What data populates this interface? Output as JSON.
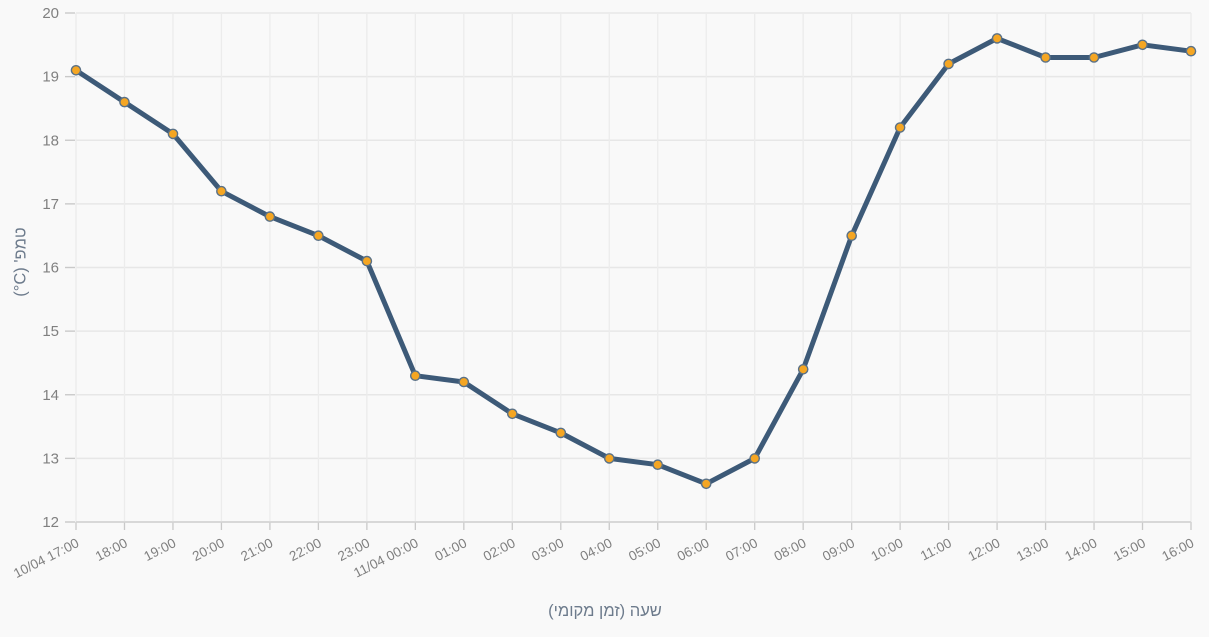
{
  "chart_data": {
    "type": "line",
    "title": "",
    "xlabel": "שעה (זמן מקומי)",
    "ylabel": "טמפ' (C°)",
    "categories": [
      "10/04 17:00",
      "18:00",
      "19:00",
      "20:00",
      "21:00",
      "22:00",
      "23:00",
      "11/04 00:00",
      "01:00",
      "02:00",
      "03:00",
      "04:00",
      "05:00",
      "06:00",
      "07:00",
      "08:00",
      "09:00",
      "10:00",
      "11:00",
      "12:00",
      "13:00",
      "14:00",
      "15:00",
      "16:00"
    ],
    "values": [
      19.1,
      18.6,
      18.1,
      17.2,
      16.8,
      16.5,
      16.1,
      14.3,
      14.2,
      13.7,
      13.4,
      13.0,
      12.9,
      12.6,
      13.0,
      14.4,
      16.5,
      18.2,
      19.2,
      19.6,
      19.3,
      19.3,
      19.5,
      19.4
    ],
    "ylim": [
      12,
      20
    ],
    "y_ticks": [
      12,
      13,
      14,
      15,
      16,
      17,
      18,
      19,
      20
    ],
    "grid": "on",
    "legend": "none",
    "colors": {
      "line": "#3d5a78",
      "marker_fill": "#f5a623",
      "marker_stroke": "#5a7187",
      "grid_h": "#e7e7e7",
      "grid_v": "#ececec",
      "axis_line": "#d4d4d4",
      "tick_mark": "#c9c9c9",
      "tick_label": "#808080",
      "axis_title": "#6d7b8c",
      "background": "#f9f9f9"
    },
    "x_label_rotation_deg": -27
  }
}
